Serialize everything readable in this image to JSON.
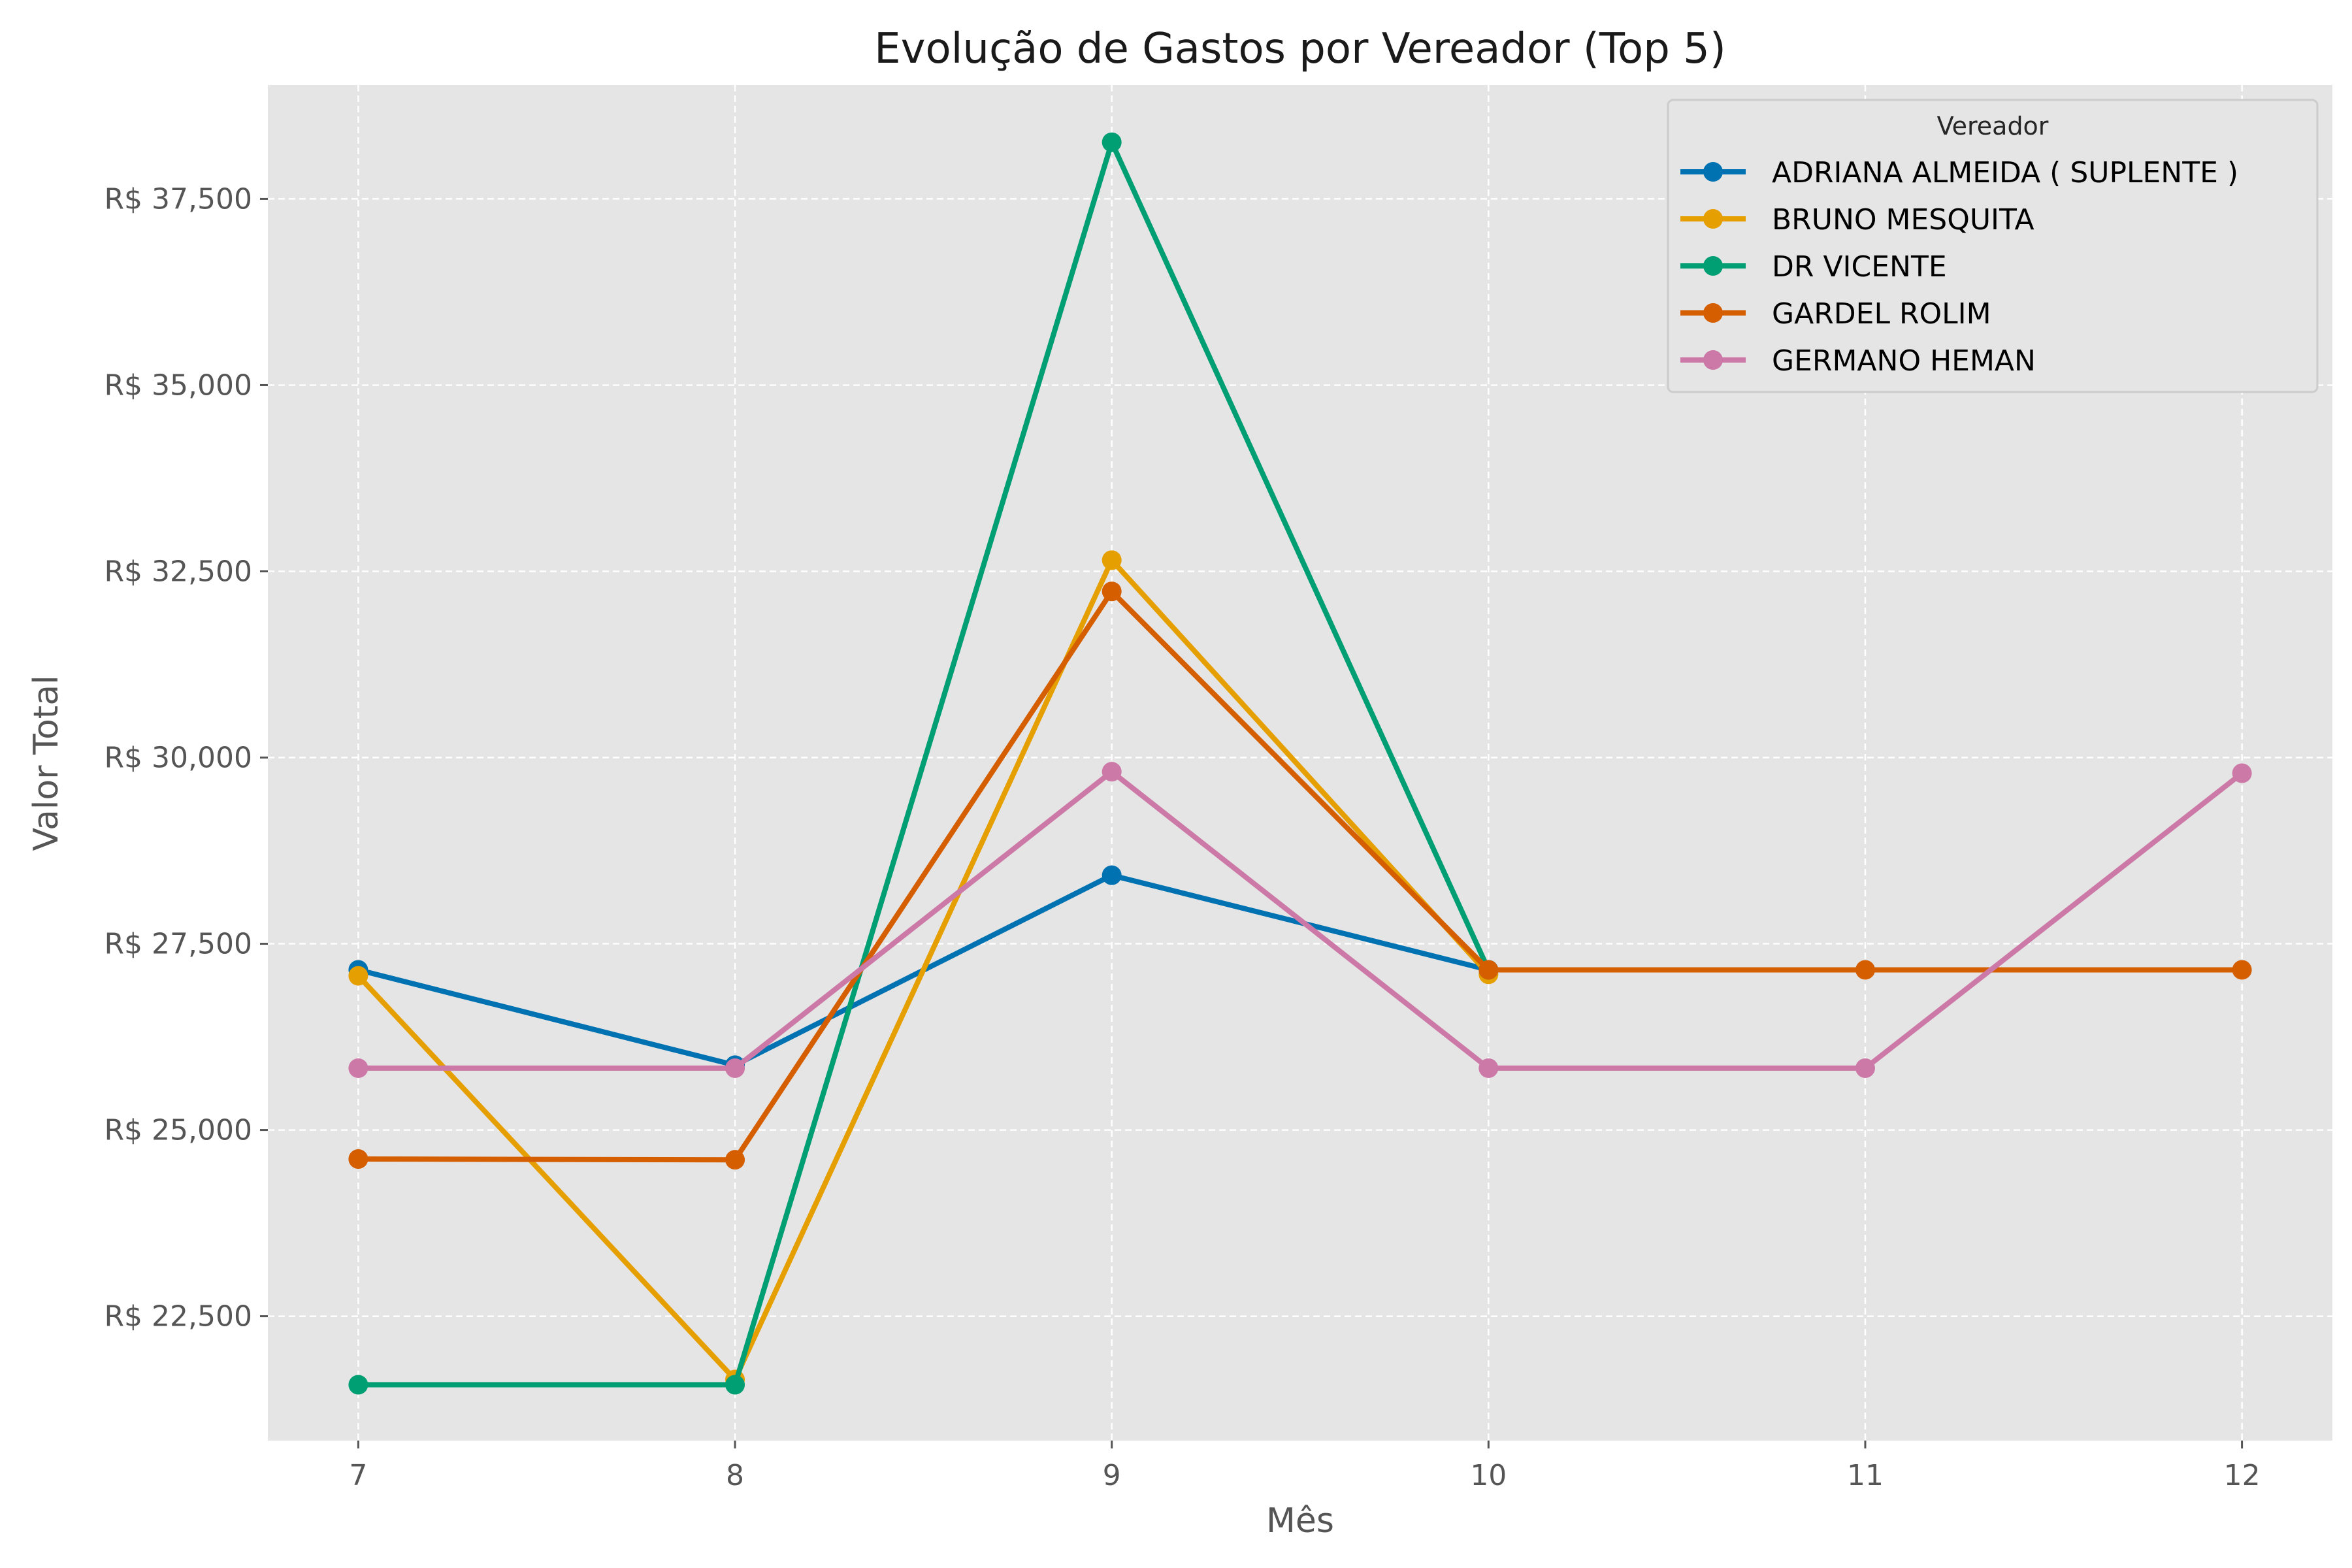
{
  "chart_data": {
    "type": "line",
    "title": "Evolução de Gastos por Vereador (Top 5)",
    "xlabel": "Mês",
    "ylabel": "Valor Total",
    "x": [
      7,
      8,
      9,
      10,
      11,
      12
    ],
    "xlim": [
      6.76,
      12.24
    ],
    "ylim": [
      20830,
      39030
    ],
    "yticks": [
      22500,
      25000,
      27500,
      30000,
      32500,
      35000,
      37500
    ],
    "ytick_labels": [
      "R$ 22,500",
      "R$ 25,000",
      "R$ 27,500",
      "R$ 30,000",
      "R$ 32,500",
      "R$ 35,000",
      "R$ 37,500"
    ],
    "xtick_labels": [
      "7",
      "8",
      "9",
      "10",
      "11",
      "12"
    ],
    "grid": true,
    "legend": {
      "title": "Vereador",
      "placement": "top-right"
    },
    "series": [
      {
        "name": "ADRIANA ALMEIDA ( SUPLENTE )",
        "color": "#0072b2",
        "x": [
          7,
          8,
          9,
          10
        ],
        "values": [
          27150,
          25870,
          28420,
          27150
        ]
      },
      {
        "name": "BRUNO MESQUITA",
        "color": "#e69f00",
        "x": [
          7,
          8,
          9,
          10
        ],
        "values": [
          27070,
          21650,
          32650,
          27090
        ]
      },
      {
        "name": "DR VICENTE",
        "color": "#009e73",
        "x": [
          7,
          8,
          9,
          10
        ],
        "values": [
          21580,
          21580,
          38260,
          27150
        ]
      },
      {
        "name": "GARDEL ROLIM",
        "color": "#d55e00",
        "x": [
          7,
          8,
          9,
          10,
          11,
          12
        ],
        "values": [
          24610,
          24600,
          32230,
          27150,
          27150,
          27150
        ]
      },
      {
        "name": "GERMANO HEMAN",
        "color": "#cc79a7",
        "x": [
          7,
          8,
          9,
          10,
          11,
          12
        ],
        "values": [
          25830,
          25830,
          29810,
          25830,
          25830,
          29790
        ]
      }
    ]
  }
}
